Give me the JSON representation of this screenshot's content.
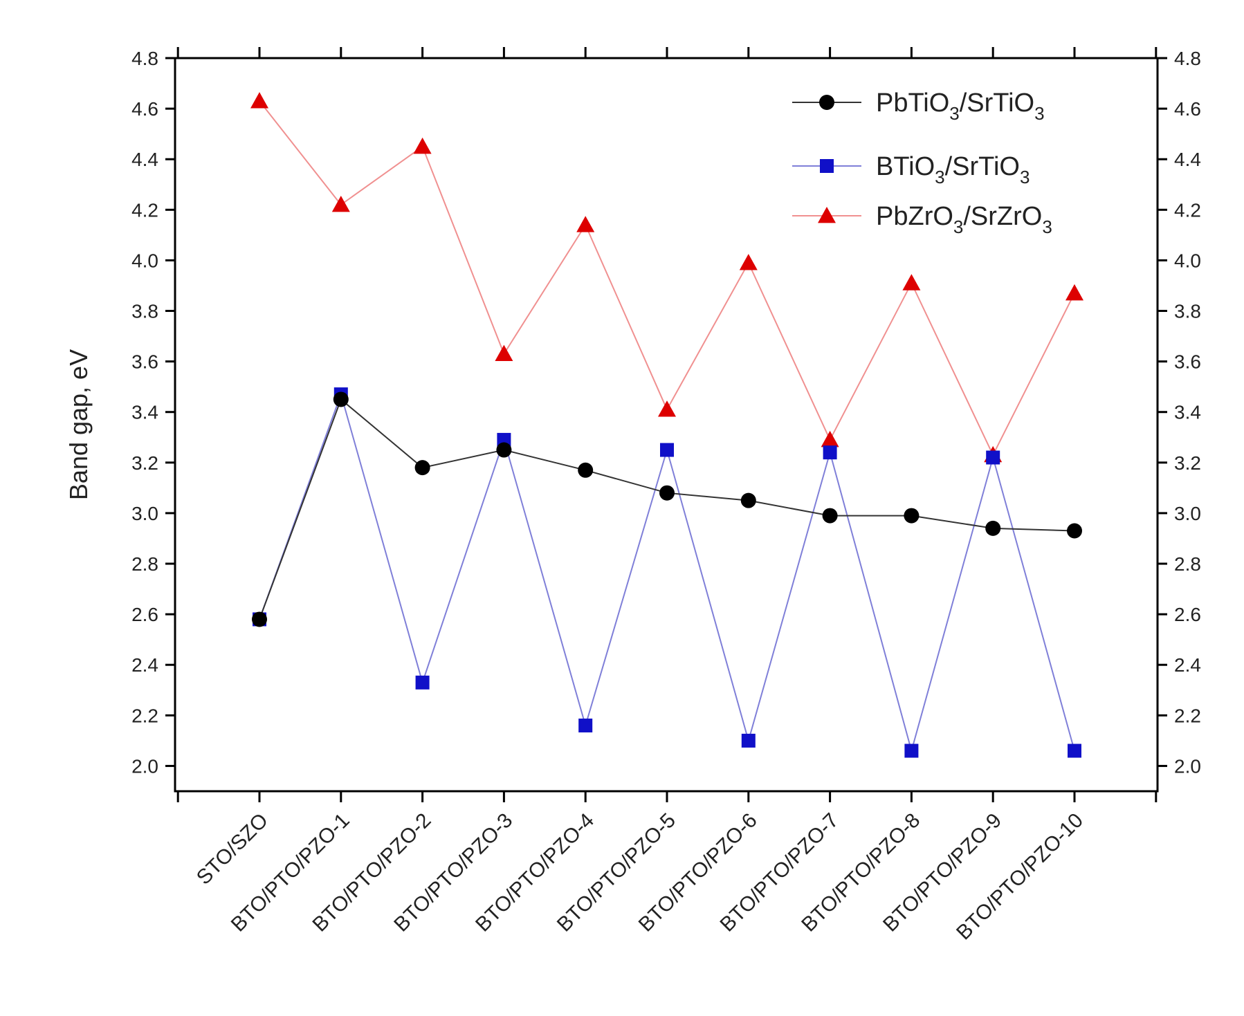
{
  "chart_data": {
    "type": "line",
    "title": "",
    "xlabel": "",
    "ylabel": "Band gap, eV",
    "ylim": [
      1.9,
      4.8
    ],
    "yticks": [
      "2.0",
      "2.2",
      "2.4",
      "2.6",
      "2.8",
      "3.0",
      "3.2",
      "3.4",
      "3.6",
      "3.8",
      "4.0",
      "4.2",
      "4.4",
      "4.6",
      "4.8"
    ],
    "categories": [
      "STO/SZO",
      "BTO/PTO/PZO-1",
      "BTO/PTO/PZO-2",
      "BTO/PTO/PZO-3",
      "BTO/PTO/PZO-4",
      "BTO/PTO/PZO-5",
      "BTO/PTO/PZO-6",
      "BTO/PTO/PZO-7",
      "BTO/PTO/PZO-8",
      "BTO/PTO/PZO-9",
      "BTO/PTO/PZO-10"
    ],
    "grid": false,
    "legend_position": "top-right",
    "series": [
      {
        "name": "PbTiO3/SrTiO3",
        "legend_main": "PbTiO",
        "legend_parts": [
          "PbTiO",
          "3",
          "/SrTiO",
          "3"
        ],
        "marker": "circle",
        "color": "#000000",
        "line_color": "#333333",
        "values": [
          2.58,
          3.45,
          3.18,
          3.25,
          3.17,
          3.08,
          3.05,
          2.99,
          2.99,
          2.94,
          2.93
        ]
      },
      {
        "name": "BTiO3/SrTiO3",
        "legend_parts": [
          "BTiO",
          "3",
          "/SrTiO",
          "3"
        ],
        "marker": "square",
        "color": "#1010c8",
        "line_color": "#7f7fd8",
        "values": [
          2.58,
          3.47,
          2.33,
          3.29,
          2.16,
          3.25,
          2.1,
          3.24,
          2.06,
          3.22,
          2.06
        ]
      },
      {
        "name": "PbZrO3/SrZrO3",
        "legend_parts": [
          "PbZrO",
          "3",
          "/SrZrO",
          "3"
        ],
        "marker": "triangle",
        "color": "#dd0000",
        "line_color": "#f09090",
        "values": [
          4.63,
          4.22,
          4.45,
          3.63,
          4.14,
          3.41,
          3.99,
          3.29,
          3.91,
          3.23,
          3.87
        ]
      }
    ]
  }
}
